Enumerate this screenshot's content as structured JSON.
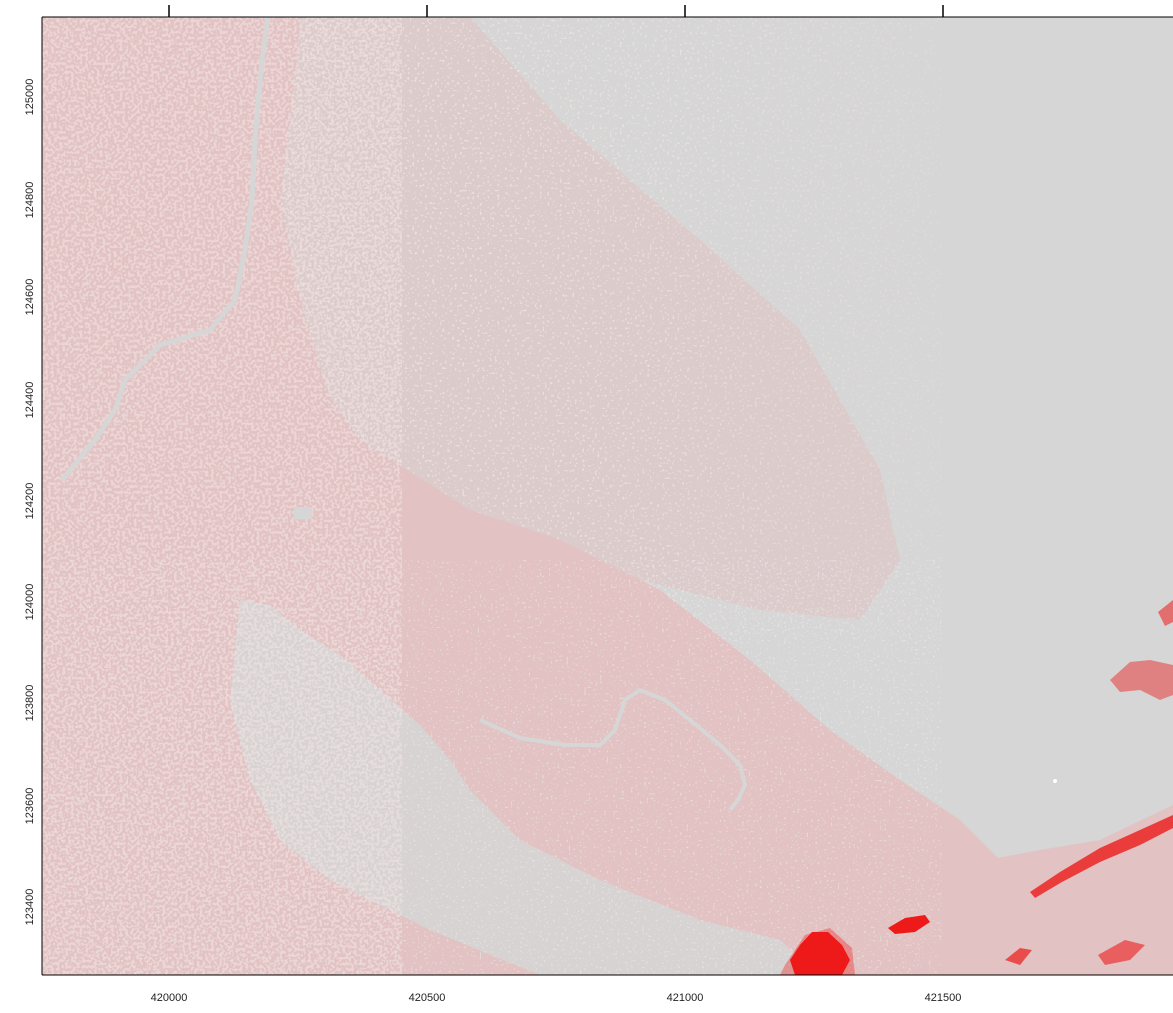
{
  "raster_map": {
    "x_ticks": [
      "420000",
      "420500",
      "421000",
      "421500"
    ],
    "y_ticks": [
      "125000",
      "124800",
      "124600",
      "124400",
      "124200",
      "124000",
      "123800",
      "123600",
      "123400"
    ],
    "colors": {
      "background": "#d6d6d6",
      "low_value": "#e2c2c2",
      "high_value": "#ee1a1a",
      "axis": "#000000"
    }
  }
}
